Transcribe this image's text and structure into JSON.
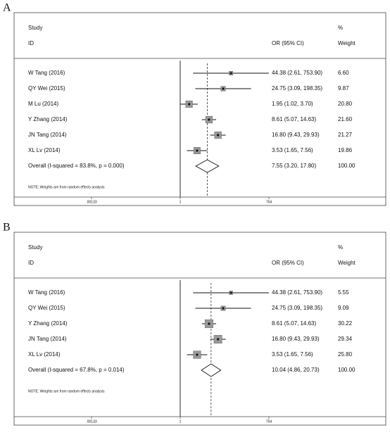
{
  "chart_data": [
    {
      "type": "forest",
      "panel_label": "A",
      "study_header": "Study",
      "id_header": "ID",
      "effect_header": "OR (95% CI)",
      "weight_unit_header": "%",
      "weight_header": "Weight",
      "names": [
        "W Tang (2016)",
        "QY Wei (2015)",
        "M Lu (2014)",
        "Y Zhang (2014)",
        "JN Tang (2014)",
        "XL Lv (2014)"
      ],
      "values": [
        44.38,
        24.75,
        1.95,
        8.61,
        16.8,
        3.53
      ],
      "ci_low": [
        2.61,
        3.09,
        1.02,
        5.07,
        9.43,
        1.65
      ],
      "ci_high": [
        753.9,
        198.35,
        3.7,
        14.63,
        29.93,
        7.56
      ],
      "value_labels": [
        "44.38 (2.61, 753.90)",
        "24.75 (3.09, 198.35)",
        "1.95 (1.02, 3.70)",
        "8.61 (5.07, 14.63)",
        "16.80 (9.43, 29.93)",
        "3.53 (1.65, 7.56)"
      ],
      "weights": [
        6.6,
        9.87,
        20.8,
        21.6,
        21.27,
        19.86
      ],
      "weight_labels": [
        "6.60",
        "9.87",
        "20.80",
        "21.60",
        "21.27",
        "19.86"
      ],
      "overall": {
        "label": "Overall  (I-squared = 83.8%, p = 0.000)",
        "value": 7.55,
        "ci_low": 3.2,
        "ci_high": 17.8,
        "value_label": "7.55 (3.20, 17.80)",
        "weight_label": "100.00"
      },
      "note": "NOTE: Weights are from random effects analysis",
      "log_scale": true,
      "xlim": [
        0.00133,
        754
      ],
      "xticks": [
        {
          "value": 0.00133,
          "label": ".00133"
        },
        1,
        754
      ]
    },
    {
      "type": "forest",
      "panel_label": "B",
      "study_header": "Study",
      "id_header": "ID",
      "effect_header": "OR (95% CI)",
      "weight_unit_header": "%",
      "weight_header": "Weight",
      "names": [
        "W Tang (2016)",
        "QY Wei (2015)",
        "Y Zhang (2014)",
        "JN Tang (2014)",
        "XL Lv (2014)"
      ],
      "values": [
        44.38,
        24.75,
        8.61,
        16.8,
        3.53
      ],
      "ci_low": [
        2.61,
        3.09,
        5.07,
        9.43,
        1.65
      ],
      "ci_high": [
        753.9,
        198.35,
        14.63,
        29.93,
        7.56
      ],
      "value_labels": [
        "44.38 (2.61, 753.90)",
        "24.75 (3.09, 198.35)",
        "8.61 (5.07, 14.63)",
        "16.80 (9.43, 29.93)",
        "3.53 (1.65, 7.56)"
      ],
      "weights": [
        5.55,
        9.09,
        30.22,
        29.34,
        25.8
      ],
      "weight_labels": [
        "5.55",
        "9.09",
        "30.22",
        "29.34",
        "25.80"
      ],
      "overall": {
        "label": "Overall  (I-squared = 67.8%, p = 0.014)",
        "value": 10.04,
        "ci_low": 4.86,
        "ci_high": 20.73,
        "value_label": "10.04 (4.86, 20.73)",
        "weight_label": "100.00"
      },
      "note": "NOTE: Weights are from random effects analysis",
      "log_scale": true,
      "xlim": [
        0.00133,
        754
      ],
      "xticks": [
        {
          "value": 0.00133,
          "label": ".00133"
        },
        1,
        754
      ]
    }
  ]
}
